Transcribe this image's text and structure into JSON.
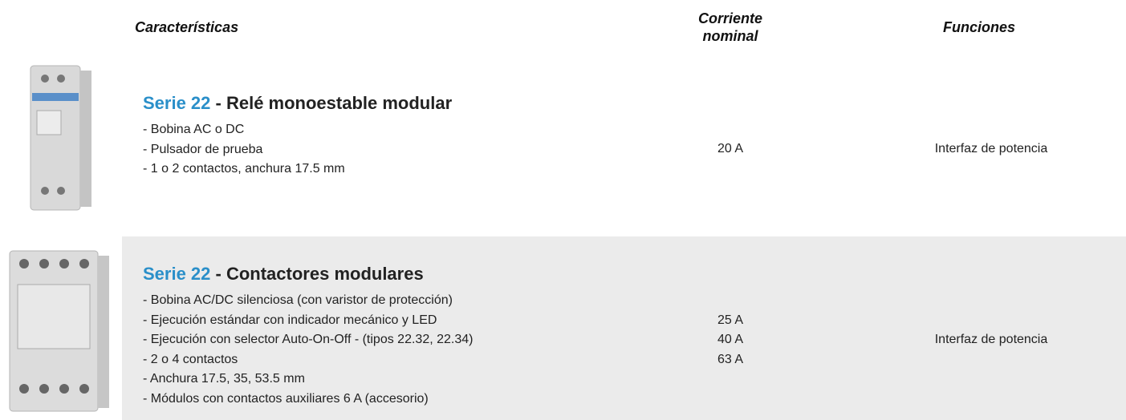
{
  "header": {
    "features": "Características",
    "current": [
      "Corriente",
      "nominal"
    ],
    "functions": "Funciones"
  },
  "rows": [
    {
      "series": "Serie 22",
      "title": "- Relé monoestable modular",
      "features": [
        "- Bobina AC o DC",
        "- Pulsador de prueba",
        "- 1 o 2 contactos, anchura 17.5 mm"
      ],
      "currents": [
        "20 A"
      ],
      "function": "Interfaz de potencia"
    },
    {
      "series": "Serie 22",
      "title": "- Contactores modulares",
      "features": [
        "- Bobina AC/DC silenciosa (con varistor de protección)",
        "- Ejecución estándar con indicador mecánico y LED",
        "- Ejecución con selector Auto-On-Off - (tipos 22.32, 22.34)",
        "- 2 o 4 contactos",
        "- Anchura 17.5, 35, 53.5 mm",
        "- Módulos con contactos auxiliares 6 A (accesorio)"
      ],
      "currents": [
        "25 A",
        "40 A",
        "63 A"
      ],
      "function": "Interfaz de potencia"
    }
  ]
}
